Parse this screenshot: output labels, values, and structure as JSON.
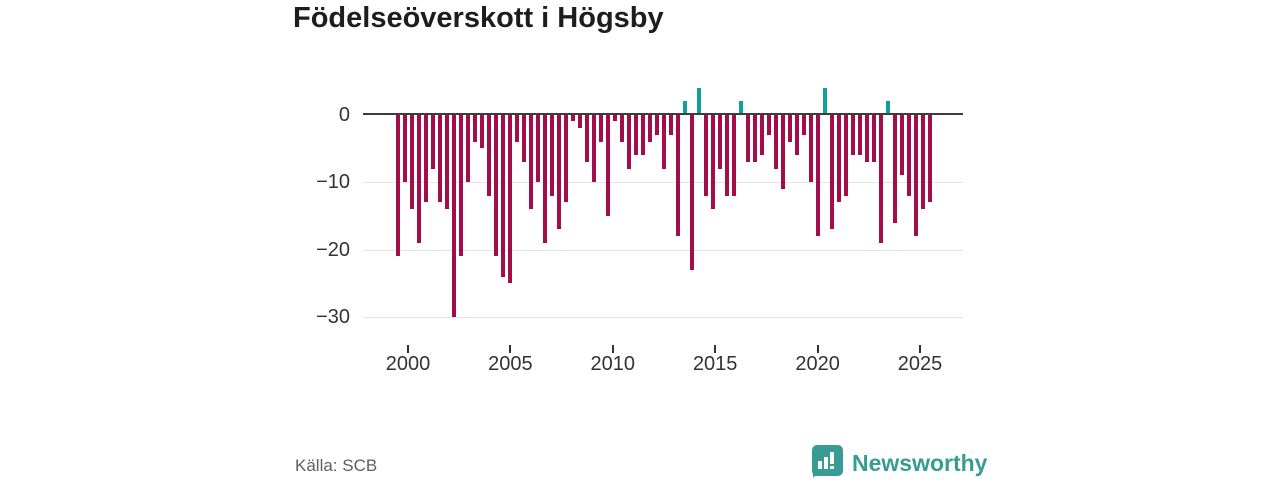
{
  "title": "Födelseöverskott i Högsby",
  "source": "Källa: SCB",
  "brand": {
    "name": "Newsworthy",
    "color": "#399c94"
  },
  "chart_data": {
    "type": "bar",
    "title": "Födelseöverskott i Högsby",
    "xlabel": "",
    "ylabel": "",
    "grid": true,
    "legend": "none",
    "ylim": [
      -32,
      5
    ],
    "ytick_values": [
      0,
      -10,
      -20,
      -30
    ],
    "ytick_labels": [
      "0",
      "−10",
      "−20",
      "−30"
    ],
    "xtick_years": [
      2000,
      2005,
      2010,
      2015,
      2020,
      2025
    ],
    "xtick_labels": [
      "2000",
      "2005",
      "2010",
      "2015",
      "2020",
      "2025"
    ],
    "start_year": 2000,
    "bars_per_year": 3,
    "colors": {
      "negative": "#a30d49",
      "positive": "#12a09a"
    },
    "series": [
      {
        "name": "Födelseöverskott",
        "values": [
          -21,
          -10,
          -14,
          -19,
          -13,
          -8,
          -13,
          -14,
          -30,
          -21,
          -10,
          -4,
          -5,
          -12,
          -21,
          -24,
          -25,
          -4,
          -7,
          -14,
          -10,
          -19,
          -12,
          -17,
          -13,
          -1,
          -2,
          -7,
          -10,
          -4,
          -15,
          -1,
          -4,
          -8,
          -6,
          -6,
          -4,
          -3,
          -8,
          -3,
          -18,
          2,
          -23,
          4,
          -12,
          -14,
          -8,
          -12,
          -12,
          2,
          -7,
          -7,
          -6,
          -3,
          -8,
          -11,
          -4,
          -6,
          -3,
          -10,
          -18,
          4,
          -17,
          -13,
          -12,
          -6,
          -6,
          -7,
          -7,
          -19,
          2,
          -16,
          -9,
          -12,
          -18,
          -14,
          -13
        ]
      }
    ]
  }
}
